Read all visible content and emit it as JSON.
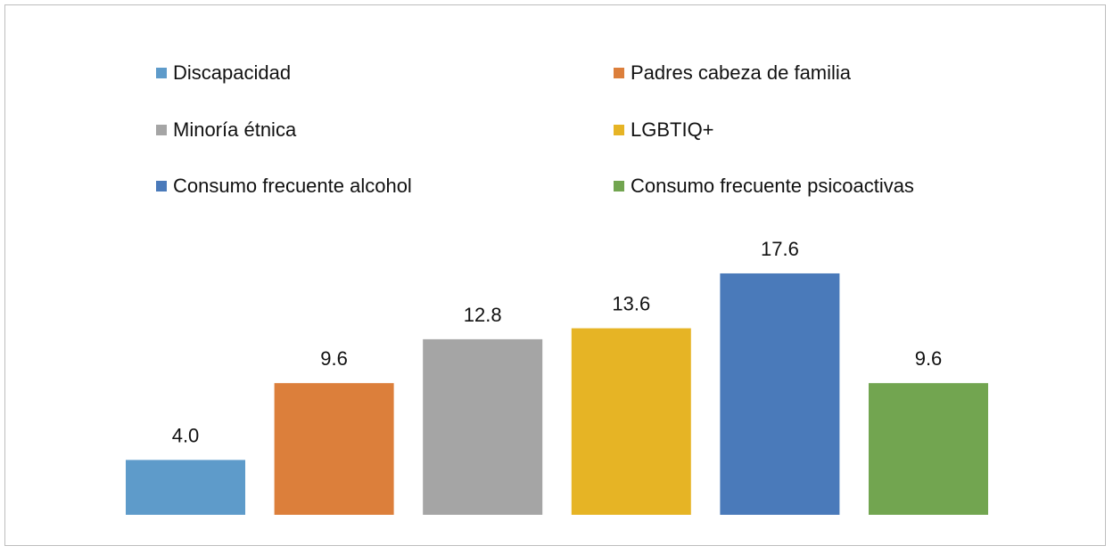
{
  "chart_data": {
    "type": "bar",
    "title": "",
    "xlabel": "",
    "ylabel": "",
    "ylim": [
      0,
      20
    ],
    "grid": false,
    "legend_position": "top",
    "categories": [
      "Discapacidad",
      "Padres cabeza de familia",
      "Minoría étnica",
      "LGBTIQ+",
      "Consumo frecuente alcohol",
      "Consumo frecuente psicoactivas"
    ],
    "values": [
      4.0,
      9.6,
      12.8,
      13.6,
      17.6,
      9.6
    ],
    "data_labels": [
      "4.0",
      "9.6",
      "12.8",
      "13.6",
      "17.6",
      "9.6"
    ],
    "colors": [
      "#5e9bca",
      "#dc7f3b",
      "#a5a5a5",
      "#e6b425",
      "#4a7aba",
      "#72a550"
    ]
  }
}
